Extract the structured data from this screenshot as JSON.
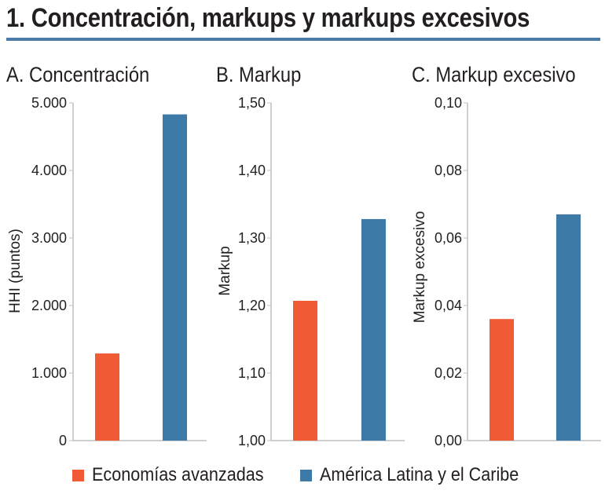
{
  "header": {
    "title": "1. Concentración, markups y markups excesivos",
    "rule_color": "#4a7ba6"
  },
  "colors": {
    "series_1": "#f05a35",
    "series_2": "#3e7aa7",
    "axis": "#bfbfbf"
  },
  "legend": {
    "position": "bottom",
    "items": [
      {
        "label": "Economías avanzadas",
        "color": "#f05a35"
      },
      {
        "label": "América Latina y el Caribe",
        "color": "#3e7aa7"
      }
    ]
  },
  "chart_data": [
    {
      "type": "bar",
      "title": "A. Concentración",
      "ylabel": "HHI (puntos)",
      "xlabel": "",
      "categories": [
        "Economías avanzadas",
        "América Latina y el Caribe"
      ],
      "values": [
        1290,
        4830
      ],
      "ylim": [
        0,
        5000
      ],
      "yticks": [
        0,
        1000,
        2000,
        3000,
        4000,
        5000
      ],
      "ytick_labels": [
        "0",
        "1.000",
        "2.000",
        "3.000",
        "4.000",
        "5.000"
      ],
      "grid": false
    },
    {
      "type": "bar",
      "title": "B. Markup",
      "ylabel": "Markup",
      "xlabel": "",
      "categories": [
        "Economías avanzadas",
        "América Latina y el Caribe"
      ],
      "values": [
        1.207,
        1.328
      ],
      "ylim": [
        1.0,
        1.5
      ],
      "yticks": [
        1.0,
        1.1,
        1.2,
        1.3,
        1.4,
        1.5
      ],
      "ytick_labels": [
        "1,00",
        "1,10",
        "1,20",
        "1,30",
        "1,40",
        "1,50"
      ],
      "grid": false
    },
    {
      "type": "bar",
      "title": "C. Markup excesivo",
      "ylabel": "Markup excesivo",
      "xlabel": "",
      "categories": [
        "Economías avanzadas",
        "América Latina y el Caribe"
      ],
      "values": [
        0.036,
        0.067
      ],
      "ylim": [
        0,
        0.1
      ],
      "yticks": [
        0,
        0.02,
        0.04,
        0.06,
        0.08,
        0.1
      ],
      "ytick_labels": [
        "0,00",
        "0,02",
        "0,04",
        "0,06",
        "0,08",
        "0,10"
      ],
      "grid": false
    }
  ]
}
